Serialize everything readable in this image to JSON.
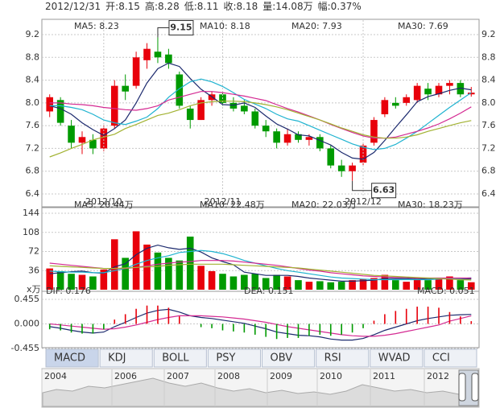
{
  "header": [
    "2012/12/31",
    "开:8.15",
    "高:8.28",
    "低:8.11",
    "收:8.18",
    "量:14.08万",
    "幅:0.37%"
  ],
  "tabs": [
    "MACD",
    "KDJ",
    "BOLL",
    "PSY",
    "OBV",
    "RSI",
    "WVAD",
    "CCI"
  ],
  "timeline": {
    "years": [
      "2004",
      "2006",
      "2007",
      "2008",
      "2009",
      "2010",
      "2011",
      "2012"
    ]
  },
  "chart_data": [
    {
      "type": "candlestick",
      "up_color": "#e8000b",
      "down_color": "#009a00",
      "grid": true,
      "categories": [
        null,
        null,
        null,
        null,
        null,
        "2012/10",
        null,
        null,
        null,
        null,
        null,
        null,
        null,
        null,
        null,
        null,
        "2012/11",
        null,
        null,
        null,
        null,
        null,
        null,
        null,
        null,
        null,
        null,
        null,
        null,
        "2012/12",
        null,
        null,
        null,
        null,
        null,
        null,
        null,
        null,
        null,
        null
      ],
      "open": [
        7.85,
        8.05,
        7.6,
        7.3,
        7.35,
        7.2,
        7.6,
        8.3,
        8.3,
        8.75,
        8.9,
        8.85,
        8.5,
        7.9,
        7.7,
        8.05,
        8.15,
        8.0,
        7.95,
        7.85,
        7.6,
        7.5,
        7.3,
        7.45,
        7.35,
        7.4,
        7.2,
        6.9,
        6.8,
        6.95,
        7.3,
        7.8,
        8.0,
        8.0,
        8.05,
        8.25,
        8.15,
        8.3,
        8.35,
        8.15
      ],
      "high": [
        8.15,
        8.1,
        7.7,
        7.5,
        7.45,
        7.6,
        8.4,
        8.5,
        8.9,
        9.05,
        9.15,
        8.95,
        8.55,
        7.95,
        8.1,
        8.2,
        8.2,
        8.1,
        8.05,
        7.9,
        7.7,
        7.55,
        7.55,
        7.5,
        7.45,
        7.45,
        7.25,
        7.0,
        6.95,
        7.3,
        7.75,
        8.1,
        8.1,
        8.15,
        8.35,
        8.35,
        8.35,
        8.4,
        8.4,
        8.28
      ],
      "low": [
        7.75,
        7.6,
        7.2,
        7.1,
        7.1,
        7.15,
        7.55,
        8.05,
        8.25,
        8.6,
        8.7,
        8.6,
        7.9,
        7.55,
        7.7,
        7.95,
        7.95,
        7.85,
        7.8,
        7.55,
        7.4,
        7.2,
        7.25,
        7.3,
        7.25,
        7.15,
        6.85,
        6.7,
        6.63,
        6.9,
        7.25,
        7.75,
        7.9,
        7.95,
        8.0,
        8.05,
        8.1,
        8.15,
        8.1,
        8.11
      ],
      "close": [
        8.1,
        7.65,
        7.3,
        7.4,
        7.2,
        7.55,
        8.3,
        8.2,
        8.8,
        8.95,
        8.8,
        8.7,
        7.95,
        7.7,
        8.05,
        8.15,
        8.0,
        7.9,
        7.85,
        7.6,
        7.5,
        7.3,
        7.45,
        7.35,
        7.4,
        7.2,
        6.9,
        6.8,
        6.9,
        7.25,
        7.7,
        8.05,
        7.95,
        8.1,
        8.3,
        8.15,
        8.3,
        8.35,
        8.15,
        8.18
      ],
      "high_label": "9.15",
      "low_label": "6.63",
      "ylim": [
        6.4,
        9.2
      ],
      "yticks": [
        6.4,
        6.8,
        7.2,
        7.6,
        {
          "value": 8,
          "label": "8.0"
        },
        8.4,
        8.8,
        9.2
      ],
      "series": [
        {
          "name": "MA5: 8.23",
          "color": "#1c2a6e",
          "values": [
            7.95,
            7.9,
            7.8,
            7.65,
            7.53,
            7.43,
            7.55,
            7.7,
            8.0,
            8.35,
            8.6,
            8.7,
            8.64,
            8.43,
            8.24,
            8.11,
            7.97,
            7.96,
            8.0,
            7.92,
            7.77,
            7.63,
            7.54,
            7.44,
            7.42,
            7.34,
            7.26,
            7.13,
            7.03,
            7.01,
            7.13,
            7.34,
            7.57,
            7.79,
            8.02,
            8.11,
            8.16,
            8.22,
            8.26,
            8.23
          ]
        },
        {
          "name": "MA10: 8.18",
          "color": "#1fb3d0",
          "values": [
            7.95,
            7.95,
            7.92,
            7.88,
            7.8,
            7.7,
            7.65,
            7.62,
            7.68,
            7.75,
            7.9,
            8.1,
            8.25,
            8.37,
            8.42,
            8.37,
            8.29,
            8.18,
            8.06,
            7.98,
            7.9,
            7.8,
            7.72,
            7.68,
            7.6,
            7.52,
            7.44,
            7.36,
            7.28,
            7.22,
            7.18,
            7.2,
            7.27,
            7.38,
            7.5,
            7.64,
            7.78,
            7.92,
            8.05,
            8.18
          ]
        },
        {
          "name": "MA20: 7.93",
          "color": "#d42a92",
          "values": [
            8.0,
            8.0,
            7.98,
            7.97,
            7.95,
            7.92,
            7.9,
            7.88,
            7.87,
            7.9,
            7.95,
            8.05,
            8.1,
            8.15,
            8.2,
            8.2,
            8.18,
            8.15,
            8.12,
            8.08,
            8.04,
            7.97,
            7.9,
            7.84,
            7.77,
            7.7,
            7.62,
            7.55,
            7.48,
            7.42,
            7.38,
            7.38,
            7.4,
            7.45,
            7.5,
            7.56,
            7.63,
            7.72,
            7.82,
            7.93
          ]
        },
        {
          "name": "MA30: 7.69",
          "color": "#a2b232",
          "values": [
            7.05,
            7.12,
            7.2,
            7.27,
            7.35,
            7.4,
            7.45,
            7.55,
            7.62,
            7.7,
            7.78,
            7.82,
            7.88,
            7.95,
            8.0,
            8.02,
            8.03,
            8.03,
            8.02,
            8.0,
            7.97,
            7.93,
            7.88,
            7.82,
            7.76,
            7.7,
            7.63,
            7.56,
            7.5,
            7.44,
            7.4,
            7.38,
            7.38,
            7.4,
            7.44,
            7.5,
            7.55,
            7.6,
            7.65,
            7.69
          ]
        }
      ]
    },
    {
      "type": "bar",
      "unit_label": "x万",
      "grid": true,
      "values": [
        40,
        35,
        30,
        28,
        25,
        38,
        95,
        60,
        110,
        85,
        70,
        60,
        55,
        100,
        45,
        35,
        30,
        25,
        28,
        30,
        22,
        28,
        25,
        18,
        15,
        16,
        14,
        15,
        18,
        20,
        22,
        28,
        18,
        15,
        20,
        18,
        22,
        25,
        18,
        14.08
      ],
      "ylim": [
        0,
        144
      ],
      "yticks": [
        36,
        72,
        108,
        144
      ],
      "series": [
        {
          "name": "MA5: 20.44万",
          "color": "#1c2a6e",
          "values": [
            30,
            32,
            34,
            35,
            32,
            31,
            43,
            49,
            66,
            78,
            84,
            79,
            76,
            78,
            71,
            60,
            53,
            47,
            33,
            30,
            27,
            27,
            27,
            25,
            22,
            20,
            18,
            16,
            16,
            17,
            18,
            21,
            21,
            21,
            21,
            20,
            21,
            20,
            20,
            20.44
          ]
        },
        {
          "name": "MA10: 22.48万",
          "color": "#1fb3d0",
          "values": [
            35,
            34,
            33,
            33,
            32,
            32,
            36,
            40,
            48,
            55,
            60,
            64,
            70,
            72,
            74,
            72,
            68,
            62,
            55,
            50,
            45,
            40,
            36,
            33,
            30,
            27,
            24,
            22,
            21,
            20,
            19,
            19,
            19,
            19,
            19,
            19,
            20,
            21,
            21,
            22.48
          ]
        },
        {
          "name": "MA20: 22.03万",
          "color": "#d42a92",
          "values": [
            50,
            48,
            46,
            44,
            42,
            40,
            40,
            40,
            42,
            45,
            48,
            50,
            52,
            53,
            55,
            55,
            55,
            54,
            52,
            50,
            48,
            46,
            43,
            40,
            37,
            35,
            32,
            30,
            28,
            26,
            25,
            24,
            23,
            23,
            22,
            22,
            22,
            22,
            22,
            22.03
          ]
        },
        {
          "name": "MA30: 18.23万",
          "color": "#a2b232",
          "values": [
            45,
            44,
            43,
            42,
            41,
            40,
            40,
            41,
            42,
            43,
            44,
            46,
            47,
            48,
            48,
            48,
            48,
            47,
            46,
            45,
            44,
            43,
            42,
            41,
            39,
            37,
            35,
            33,
            31,
            29,
            27,
            26,
            25,
            24,
            23,
            22,
            21,
            20,
            19,
            18.23
          ]
        }
      ]
    },
    {
      "type": "line",
      "grid": true,
      "ylim": [
        -0.455,
        0.455
      ],
      "yticks": [
        -0.455,
        {
          "value": 0,
          "label": "0.000"
        },
        0.455
      ],
      "series": [
        {
          "name": "DIF: 0.176",
          "color": "#1c2a6e",
          "values": [
            -0.05,
            -0.08,
            -0.12,
            -0.15,
            -0.17,
            -0.15,
            -0.05,
            0.03,
            0.12,
            0.2,
            0.25,
            0.27,
            0.22,
            0.15,
            0.12,
            0.1,
            0.07,
            0.04,
            0.01,
            -0.04,
            -0.09,
            -0.15,
            -0.18,
            -0.21,
            -0.22,
            -0.24,
            -0.28,
            -0.3,
            -0.3,
            -0.27,
            -0.2,
            -0.12,
            -0.06,
            0.0,
            0.06,
            0.1,
            0.13,
            0.16,
            0.17,
            0.176
          ]
        },
        {
          "name": "DEA: 0.151",
          "color": "#d42a92",
          "values": [
            0.0,
            -0.02,
            -0.04,
            -0.06,
            -0.08,
            -0.1,
            -0.09,
            -0.06,
            -0.02,
            0.03,
            0.08,
            0.12,
            0.15,
            0.15,
            0.15,
            0.14,
            0.13,
            0.11,
            0.09,
            0.06,
            0.03,
            -0.01,
            -0.05,
            -0.08,
            -0.11,
            -0.14,
            -0.17,
            -0.2,
            -0.22,
            -0.23,
            -0.23,
            -0.21,
            -0.18,
            -0.14,
            -0.1,
            -0.06,
            -0.02,
            0.05,
            0.1,
            0.151
          ]
        },
        {
          "name": "MACD: 0.051",
          "type": "bar",
          "color": "#e8000b",
          "down_color": "#009a00",
          "values": [
            -0.1,
            -0.12,
            -0.16,
            -0.18,
            -0.18,
            -0.1,
            0.08,
            0.18,
            0.28,
            0.34,
            0.34,
            0.3,
            0.14,
            0.0,
            -0.06,
            -0.08,
            -0.12,
            -0.14,
            -0.16,
            -0.2,
            -0.24,
            -0.28,
            -0.26,
            -0.26,
            -0.22,
            -0.2,
            -0.22,
            -0.2,
            -0.16,
            -0.08,
            0.06,
            0.18,
            0.24,
            0.28,
            0.32,
            0.32,
            0.3,
            0.22,
            0.14,
            0.051
          ]
        }
      ]
    }
  ]
}
